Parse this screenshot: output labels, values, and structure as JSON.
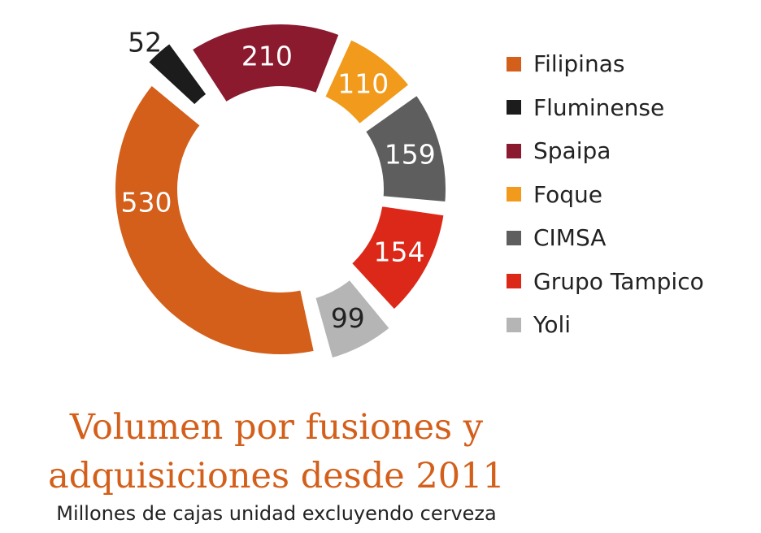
{
  "title_lines": [
    "Volumen por fusiones y",
    "adquisiciones desde 2011"
  ],
  "subtitle": "Millones de cajas unidad excluyendo cerveza",
  "chart_data": {
    "type": "pie",
    "donut": true,
    "categories": [
      "Filipinas",
      "Fluminense",
      "Spaipa",
      "Foque",
      "CIMSA",
      "Grupo Tampico",
      "Yoli"
    ],
    "values": [
      530,
      52,
      210,
      110,
      159,
      154,
      99
    ],
    "colors": [
      "#d35f1a",
      "#1c1c1c",
      "#8b1a2f",
      "#f29a1b",
      "#5e5e5e",
      "#dc2818",
      "#b5b5b5"
    ],
    "label_colors": [
      "#ffffff",
      "#222222",
      "#ffffff",
      "#ffffff",
      "#ffffff",
      "#ffffff",
      "#222222"
    ],
    "title": "Volumen por fusiones y adquisiciones desde 2011",
    "subtitle": "Millones de cajas unidad excluyendo cerveza",
    "legend_position": "right"
  }
}
